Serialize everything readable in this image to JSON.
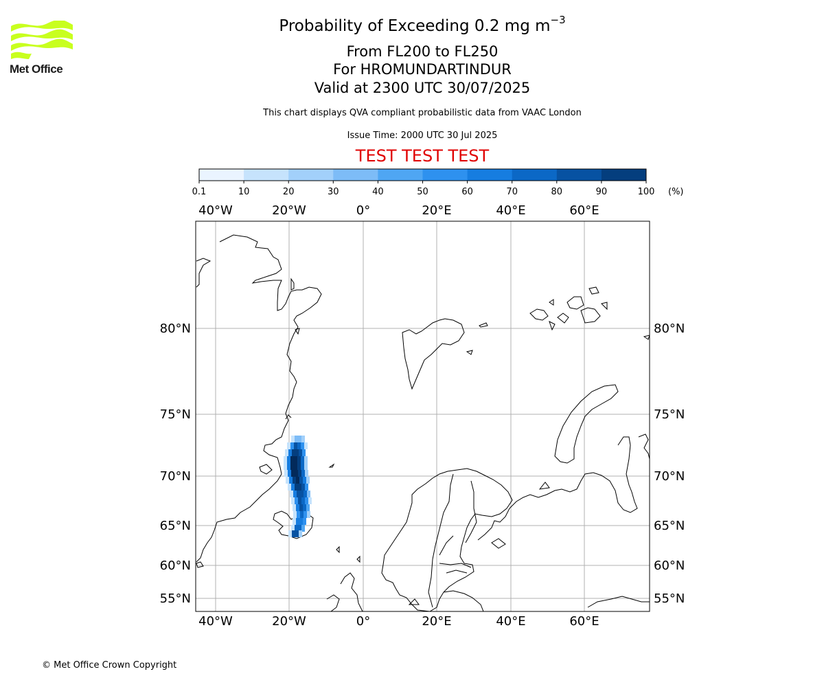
{
  "header": {
    "title_main": "Probability of Exceeding 0.2 mg m",
    "title_sup": "−3",
    "line2": "From FL200 to FL250",
    "line3": "For HROMUNDARTINDUR",
    "line4": "Valid at 2300 UTC 30/07/2025",
    "note": "This chart displays QVA compliant probabilistic data from VAAC London",
    "issue_time": "Issue Time: 2000 UTC 30 Jul 2025",
    "test_banner": "TEST TEST TEST"
  },
  "logo": {
    "text": "Met Office",
    "color": "#c8ff1e"
  },
  "colorbar": {
    "unit": "(%)",
    "ticks": [
      "0.1",
      "10",
      "20",
      "30",
      "40",
      "50",
      "60",
      "70",
      "80",
      "90",
      "100"
    ],
    "colors": [
      "#eaf4ff",
      "#c6e3fc",
      "#a2d0fa",
      "#7dbcf7",
      "#4fa6f3",
      "#2e91ef",
      "#167de0",
      "#0b68c6",
      "#0752a2",
      "#043e7e",
      "#032a5a"
    ]
  },
  "map": {
    "lon_labels": [
      "40°W",
      "20°W",
      "0°",
      "20°E",
      "40°E",
      "60°E"
    ],
    "lat_labels": [
      "80°N",
      "75°N",
      "70°N",
      "65°N",
      "60°N",
      "55°N"
    ],
    "plume_color_max": "#032a5a"
  },
  "footer": {
    "copyright": "© Met Office Crown Copyright"
  }
}
